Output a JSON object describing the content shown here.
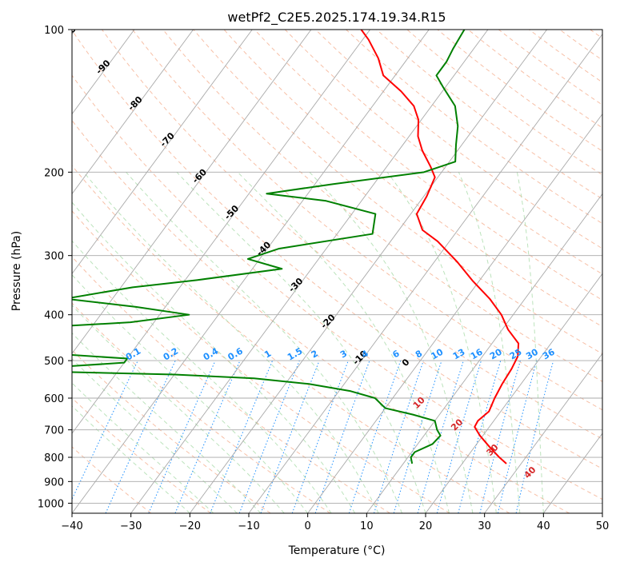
{
  "chart_data": {
    "type": "line",
    "subtype": "skew-T log-P",
    "title": "wetPf2_C2E5.2025.174.19.34.R15",
    "xlabel": "Temperature (°C)",
    "ylabel": "Pressure (hPa)",
    "xlim": [
      -40,
      50
    ],
    "ylim": [
      1050,
      100
    ],
    "y_scale": "log",
    "grid": true,
    "x_ticks": [
      "−40",
      "−30",
      "−20",
      "−10",
      "0",
      "10",
      "20",
      "30",
      "40",
      "50"
    ],
    "x_tick_values": [
      -40,
      -30,
      -20,
      -10,
      0,
      10,
      20,
      30,
      40,
      50
    ],
    "y_ticks": [
      "100",
      "200",
      "300",
      "400",
      "500",
      "600",
      "700",
      "800",
      "900",
      "1000"
    ],
    "y_tick_values": [
      100,
      200,
      300,
      400,
      500,
      600,
      700,
      800,
      900,
      1000
    ],
    "isotherm_labels": [
      "-100",
      "-90",
      "-80",
      "-70",
      "-60",
      "-50",
      "-40",
      "-30",
      "-20",
      "-10",
      "0",
      "10",
      "20",
      "30",
      "40"
    ],
    "isotherm_label_values": [
      -100,
      -90,
      -80,
      -70,
      -60,
      -50,
      -40,
      -30,
      -20,
      -10,
      0,
      10,
      20,
      30,
      40
    ],
    "mixing_ratio_labels": [
      "0.1",
      "0.2",
      "0.4",
      "0.6",
      "1",
      "1.5",
      "2",
      "3",
      "4",
      "6",
      "8",
      "10",
      "13",
      "16",
      "20",
      "25",
      "30",
      "36"
    ],
    "mixing_ratio_values": [
      0.1,
      0.2,
      0.4,
      0.6,
      1,
      1.5,
      2,
      3,
      4,
      6,
      8,
      10,
      13,
      16,
      20,
      25,
      30,
      36
    ],
    "colors": {
      "temperature": "#ff0000",
      "dewpoint": "#008000",
      "isotherm": "#a9a9a9",
      "dry_adiabat": "#f4a582",
      "moist_adiabat": "#a6d9a6",
      "mixing_ratio": "#1e90ff",
      "isotherm_label": "#1f77b4",
      "dry_adiabat_label": "#d62728"
    },
    "series": [
      {
        "name": "Temperature",
        "points": [
          {
            "p": 825,
            "t": 27.5
          },
          {
            "p": 800,
            "t": 25.5
          },
          {
            "p": 760,
            "t": 22.5
          },
          {
            "p": 720,
            "t": 19.5
          },
          {
            "p": 690,
            "t": 17.5
          },
          {
            "p": 670,
            "t": 17.3
          },
          {
            "p": 640,
            "t": 18.0
          },
          {
            "p": 600,
            "t": 17.3
          },
          {
            "p": 560,
            "t": 16.8
          },
          {
            "p": 520,
            "t": 16.5
          },
          {
            "p": 490,
            "t": 16.0
          },
          {
            "p": 460,
            "t": 14.5
          },
          {
            "p": 430,
            "t": 11.0
          },
          {
            "p": 400,
            "t": 8.0
          },
          {
            "p": 370,
            "t": 4.0
          },
          {
            "p": 340,
            "t": -1.0
          },
          {
            "p": 310,
            "t": -6.0
          },
          {
            "p": 280,
            "t": -12.0
          },
          {
            "p": 265,
            "t": -16.0
          },
          {
            "p": 245,
            "t": -19.0
          },
          {
            "p": 225,
            "t": -19.5
          },
          {
            "p": 205,
            "t": -20.5
          },
          {
            "p": 195,
            "t": -22.5
          },
          {
            "p": 180,
            "t": -26.0
          },
          {
            "p": 168,
            "t": -28.5
          },
          {
            "p": 155,
            "t": -30.5
          },
          {
            "p": 145,
            "t": -33.0
          },
          {
            "p": 135,
            "t": -37.0
          },
          {
            "p": 125,
            "t": -42.0
          },
          {
            "p": 115,
            "t": -45.0
          },
          {
            "p": 105,
            "t": -49.0
          },
          {
            "p": 100,
            "t": -51.5
          }
        ]
      },
      {
        "name": "Dewpoint",
        "points": [
          {
            "p": 825,
            "t": 11.5
          },
          {
            "p": 800,
            "t": 10.5
          },
          {
            "p": 780,
            "t": 10.5
          },
          {
            "p": 750,
            "t": 12.5
          },
          {
            "p": 720,
            "t": 12.8
          },
          {
            "p": 700,
            "t": 11.5
          },
          {
            "p": 670,
            "t": 10.0
          },
          {
            "p": 650,
            "t": 5.5
          },
          {
            "p": 630,
            "t": 0.0
          },
          {
            "p": 600,
            "t": -3.0
          },
          {
            "p": 580,
            "t": -8.0
          },
          {
            "p": 560,
            "t": -16.0
          },
          {
            "p": 545,
            "t": -26.0
          },
          {
            "p": 535,
            "t": -40.0
          },
          {
            "p": 525,
            "t": -68.0
          },
          {
            "p": 515,
            "t": -60.0
          },
          {
            "p": 505,
            "t": -50.0
          },
          {
            "p": 495,
            "t": -50.0
          },
          {
            "p": 482,
            "t": -65.0
          },
          {
            "p": 470,
            "t": -90.0
          },
          {
            "p": 430,
            "t": -75.0
          },
          {
            "p": 415,
            "t": -54.0
          },
          {
            "p": 400,
            "t": -45.0
          },
          {
            "p": 385,
            "t": -55.0
          },
          {
            "p": 370,
            "t": -68.0
          },
          {
            "p": 350,
            "t": -58.0
          },
          {
            "p": 338,
            "t": -48.0
          },
          {
            "p": 320,
            "t": -35.0
          },
          {
            "p": 305,
            "t": -42.0
          },
          {
            "p": 290,
            "t": -38.0
          },
          {
            "p": 270,
            "t": -24.0
          },
          {
            "p": 245,
            "t": -26.0
          },
          {
            "p": 230,
            "t": -36.0
          },
          {
            "p": 222,
            "t": -47.0
          },
          {
            "p": 212,
            "t": -37.0
          },
          {
            "p": 200,
            "t": -23.0
          },
          {
            "p": 190,
            "t": -19.0
          },
          {
            "p": 175,
            "t": -21.0
          },
          {
            "p": 160,
            "t": -23.0
          },
          {
            "p": 145,
            "t": -26.0
          },
          {
            "p": 132,
            "t": -30.5
          },
          {
            "p": 125,
            "t": -33.0
          },
          {
            "p": 117,
            "t": -33.0
          },
          {
            "p": 110,
            "t": -33.5
          },
          {
            "p": 100,
            "t": -34.0
          }
        ]
      }
    ]
  }
}
